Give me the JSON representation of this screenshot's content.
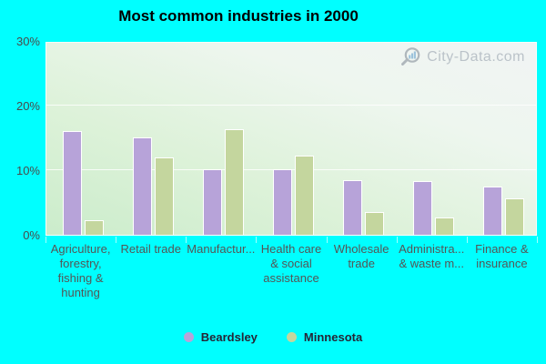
{
  "title": "Most common industries in 2000",
  "watermark": "City-Data.com",
  "colors": {
    "background": "#00ffff",
    "beardsley_bar": "#b7a3d9",
    "minnesota_bar": "#c4d69e",
    "plot_top": "#f1f4f4",
    "plot_bottom": "#cbeccb",
    "axis_text": "#4a4a4a",
    "xlabel_text": "#555555",
    "legend_text": "#252535",
    "watermark_text": "#a9b2bb",
    "title_text": "#000000"
  },
  "chart_data": {
    "type": "bar",
    "title": "Most common industries in 2000",
    "categories": [
      "Agriculture,\nforestry,\nfishing &\nhunting",
      "Retail trade",
      "Manufactur...",
      "Health care\n& social\nassistance",
      "Wholesale\ntrade",
      "Administra...\n& waste m...",
      "Finance &\ninsurance"
    ],
    "series": [
      {
        "name": "Beardsley",
        "color": "#b7a3d9",
        "values": [
          16.1,
          15.1,
          10.2,
          10.1,
          8.4,
          8.3,
          7.4
        ]
      },
      {
        "name": "Minnesota",
        "color": "#c4d69e",
        "values": [
          2.3,
          12.0,
          16.3,
          12.3,
          3.5,
          2.7,
          5.6
        ]
      }
    ],
    "ylabel": "",
    "xlabel": "",
    "ylim": [
      0,
      30
    ],
    "yticks": [
      0,
      10,
      20,
      30
    ],
    "ytick_labels": [
      "0%",
      "10%",
      "20%",
      "30%"
    ],
    "grid": "horizontal",
    "legend_position": "bottom"
  }
}
